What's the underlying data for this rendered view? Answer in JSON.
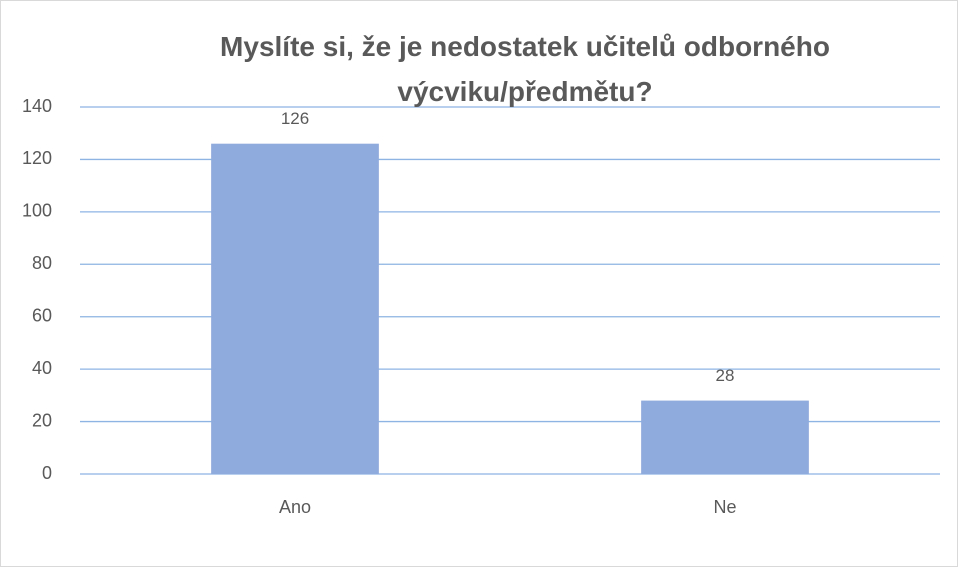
{
  "chart_data": {
    "type": "bar",
    "title": "Myslíte si, že je nedostatek učitelů odborného výcviku/předmětu?",
    "categories": [
      "Ano",
      "Ne"
    ],
    "values": [
      126,
      28
    ],
    "color": "#8faadc",
    "ylim": [
      0,
      140
    ],
    "yticks": [
      0,
      20,
      40,
      60,
      80,
      100,
      120,
      140
    ],
    "grid": true
  }
}
